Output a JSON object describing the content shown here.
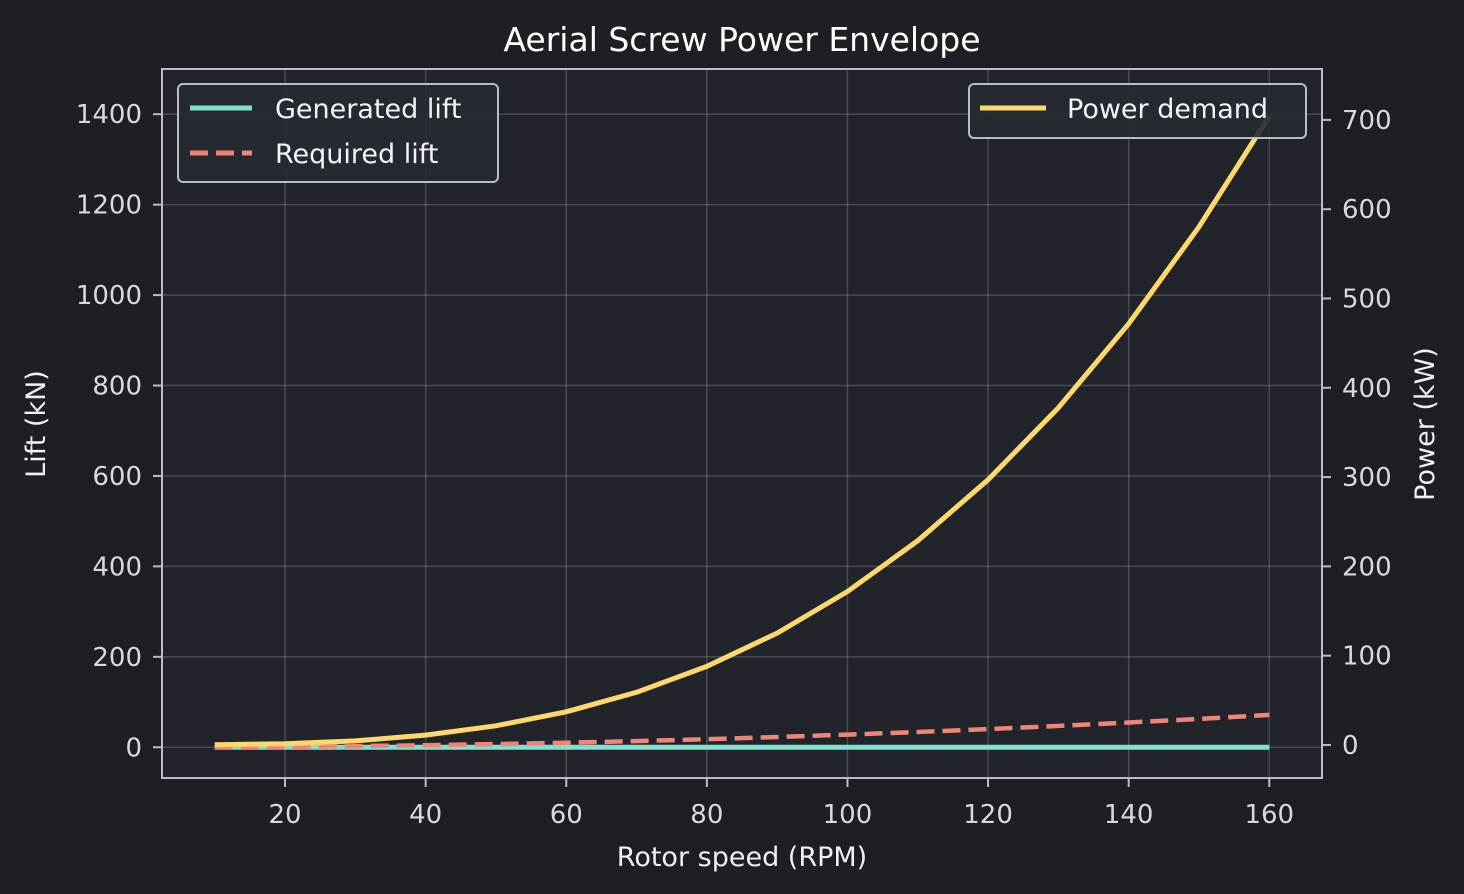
{
  "chart_data": {
    "type": "line",
    "title": "Aerial Screw Power Envelope",
    "xlabel": "Rotor speed (RPM)",
    "ylabel_left": "Lift (kN)",
    "ylabel_right": "Power (kW)",
    "xlim": [
      2.5,
      167.5
    ],
    "ylim_left": [
      -68,
      1500
    ],
    "ylim_right": [
      -37,
      757
    ],
    "x_ticks": [
      20,
      40,
      60,
      80,
      100,
      120,
      140,
      160
    ],
    "y_ticks_left": [
      0,
      200,
      400,
      600,
      800,
      1000,
      1200,
      1400
    ],
    "y_ticks_right": [
      0,
      100,
      200,
      300,
      400,
      500,
      600,
      700
    ],
    "grid": true,
    "series": [
      {
        "name": "Generated lift",
        "axis": "left",
        "color": "#7fe0cf",
        "style": "solid",
        "x": [
          10,
          20,
          30,
          40,
          50,
          60,
          70,
          80,
          90,
          100,
          110,
          120,
          130,
          140,
          150,
          160
        ],
        "y": [
          0,
          0,
          0,
          0,
          0,
          0,
          0,
          0,
          0,
          0,
          0,
          0,
          0,
          0,
          0,
          0
        ]
      },
      {
        "name": "Required lift",
        "axis": "left",
        "color": "#f08577",
        "style": "dashed",
        "x": [
          10,
          20,
          30,
          40,
          50,
          60,
          70,
          80,
          90,
          100,
          110,
          120,
          130,
          140,
          150,
          160
        ],
        "y": [
          0.3,
          1.1,
          2.5,
          4.5,
          7.0,
          10.1,
          13.7,
          17.9,
          22.6,
          27.9,
          33.8,
          40.2,
          47.2,
          54.7,
          62.8,
          71.5
        ]
      },
      {
        "name": "Power demand",
        "axis": "right",
        "color": "#ffd86b",
        "style": "solid",
        "x": [
          10,
          20,
          30,
          40,
          50,
          60,
          70,
          80,
          90,
          100,
          110,
          120,
          130,
          140,
          150,
          160
        ],
        "y": [
          0.2,
          1.4,
          4.6,
          11.0,
          21.5,
          37.1,
          59.0,
          88.0,
          125.3,
          171.9,
          228.8,
          297.1,
          377.7,
          471.8,
          580.3,
          704.3
        ]
      }
    ],
    "legend_left": {
      "placement": "upper-left",
      "entries": [
        "Generated lift",
        "Required lift"
      ]
    },
    "legend_right": {
      "placement": "upper-right",
      "entries": [
        "Power demand"
      ]
    }
  }
}
